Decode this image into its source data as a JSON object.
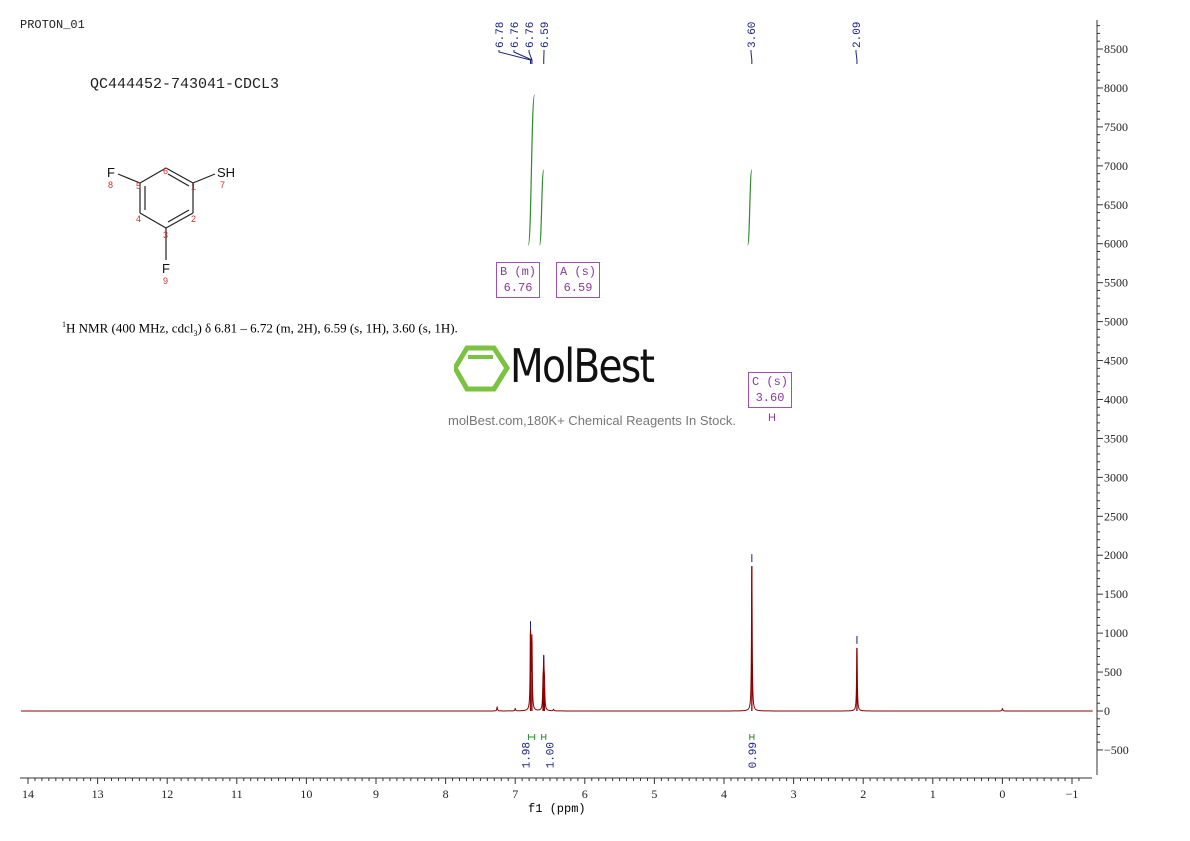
{
  "experiment": "PROTON_01",
  "sample": "QC444452-743041-CDCL3",
  "description": {
    "nucleus_sup": "1",
    "text": "H NMR (400 MHz, cdcl",
    "sub": "3",
    "rest": ") δ 6.81 – 6.72 (m, 2H), 6.59 (s, 1H), 3.60 (s, 1H)."
  },
  "structure": {
    "atoms": [
      "F",
      "SH",
      "F"
    ],
    "numbers": [
      "1",
      "2",
      "3",
      "4",
      "5",
      "6",
      "7",
      "8",
      "9"
    ]
  },
  "watermark": {
    "logo": "MolBest",
    "text": "molBest.com,180K+ Chemical Reagents In Stock."
  },
  "multiplets": [
    {
      "label": "B (m)",
      "shift": "6.76"
    },
    {
      "label": "A (s)",
      "shift": "6.59"
    },
    {
      "label": "C (s)",
      "shift": "3.60",
      "nuclei": "H"
    }
  ],
  "colors": {
    "spectrum": "#8b0000",
    "integral": "#2e8b2e",
    "peak_label": "#1a237e",
    "multiplet": "#8a3aa0"
  },
  "chart_data": {
    "type": "line",
    "xlabel": "f1 (ppm)",
    "xlim": [
      14,
      -1
    ],
    "x_ticks": [
      "14",
      "13",
      "12",
      "11",
      "10",
      "9",
      "8",
      "7",
      "6",
      "5",
      "4",
      "3",
      "2",
      "1",
      "0",
      "-1"
    ],
    "ylim": [
      -800,
      8700
    ],
    "y_ticks": [
      "8500",
      "8000",
      "7500",
      "7000",
      "6500",
      "6000",
      "5500",
      "5000",
      "4500",
      "4000",
      "3500",
      "3000",
      "2500",
      "2000",
      "1500",
      "1000",
      "500",
      "0",
      "-500"
    ],
    "peak_labels": [
      "6.78",
      "6.76",
      "6.76",
      "6.59",
      "3.60",
      "2.09"
    ],
    "peaks": [
      {
        "ppm": 7.26,
        "height": 50
      },
      {
        "ppm": 7.0,
        "height": 30
      },
      {
        "ppm": 6.78,
        "height": 1000
      },
      {
        "ppm": 6.76,
        "height": 900
      },
      {
        "ppm": 6.6,
        "height": 300
      },
      {
        "ppm": 6.59,
        "height": 560
      },
      {
        "ppm": 6.58,
        "height": 300
      },
      {
        "ppm": 6.45,
        "height": 20
      },
      {
        "ppm": 3.6,
        "height": 1860
      },
      {
        "ppm": 2.09,
        "height": 810
      },
      {
        "ppm": 0.0,
        "height": 30
      }
    ],
    "integrals": [
      {
        "from": 6.81,
        "to": 6.72,
        "value": "1.98"
      },
      {
        "from": 6.62,
        "to": 6.56,
        "value": "1.00"
      },
      {
        "from": 3.63,
        "to": 3.57,
        "value": "0.99"
      }
    ]
  }
}
